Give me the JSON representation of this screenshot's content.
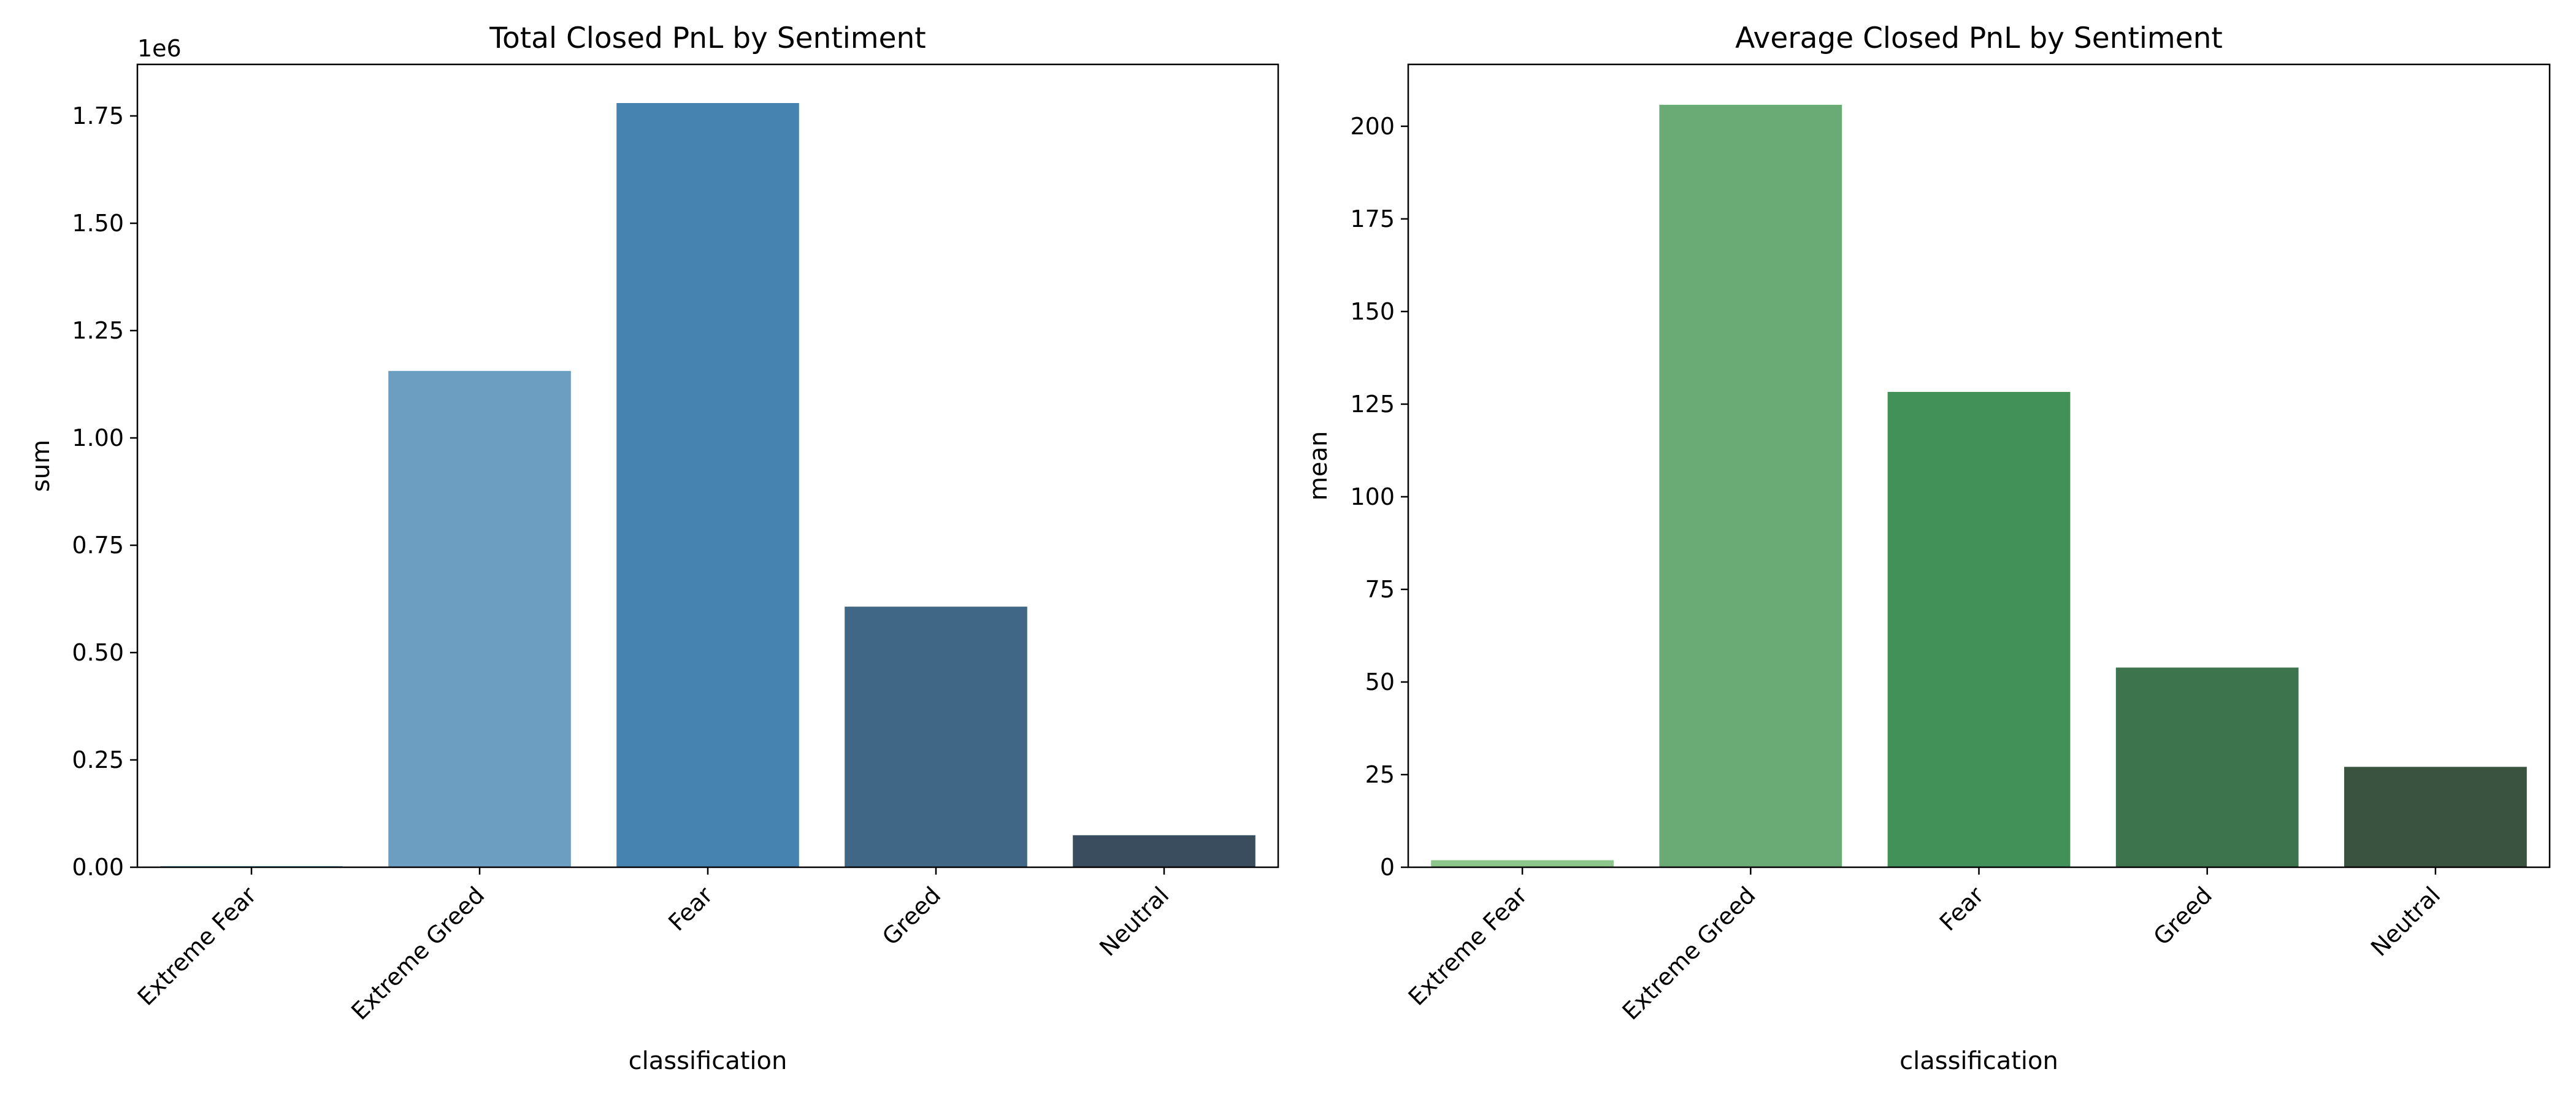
{
  "chart_data": [
    {
      "type": "bar",
      "title": "Total Closed PnL by Sentiment",
      "xlabel": "classification",
      "ylabel": "sum",
      "offset_label": "1e6",
      "categories": [
        "Extreme Fear",
        "Extreme Greed",
        "Fear",
        "Greed",
        "Neutral"
      ],
      "values": [
        739.11,
        1156000,
        1780000,
        607000,
        74600
      ],
      "ylim": [
        0,
        1870000
      ],
      "yticks": [
        0,
        250000,
        500000,
        750000,
        1000000,
        1250000,
        1500000,
        1750000
      ],
      "ytick_labels": [
        "0.00",
        "0.25",
        "0.50",
        "0.75",
        "1.00",
        "1.25",
        "1.50",
        "1.75"
      ],
      "colors": [
        "#8bb8d6",
        "#6b9ec0",
        "#4783b0",
        "#406886",
        "#3a4d5e"
      ],
      "grid": false,
      "legend": "none"
    },
    {
      "type": "bar",
      "title": "Average Closed PnL by Sentiment",
      "xlabel": "classification",
      "ylabel": "mean",
      "offset_label": "",
      "categories": [
        "Extreme Fear",
        "Extreme Greed",
        "Fear",
        "Greed",
        "Neutral"
      ],
      "values": [
        1.9,
        205.8,
        128.3,
        53.9,
        27.1
      ],
      "ylim": [
        0,
        216.7
      ],
      "yticks": [
        0,
        25,
        50,
        75,
        100,
        125,
        150,
        175,
        200
      ],
      "ytick_labels": [
        "0",
        "25",
        "50",
        "75",
        "100",
        "125",
        "150",
        "175",
        "200"
      ],
      "colors": [
        "#8cc68a",
        "#6aab75",
        "#429158",
        "#3d734d",
        "#3a5240"
      ],
      "grid": false,
      "legend": "none"
    }
  ]
}
